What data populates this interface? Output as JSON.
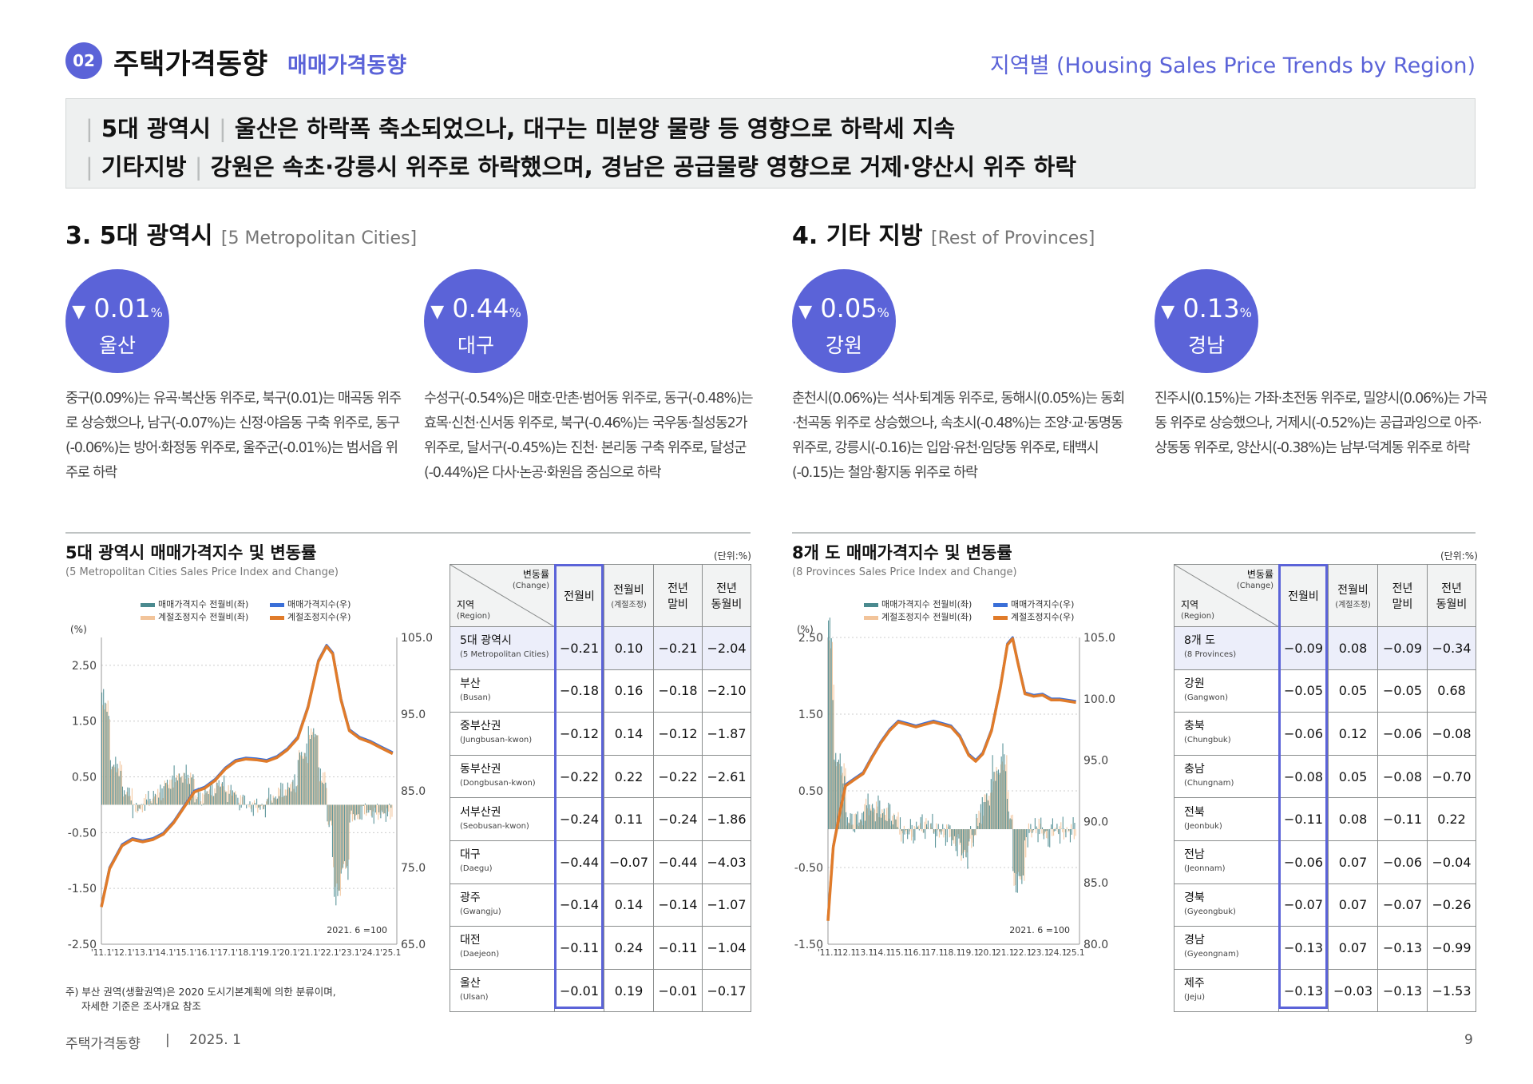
{
  "header": {
    "number": "02",
    "title": "주택가격동향",
    "subtitle": "매매가격동향",
    "region_title": "지역별 (Housing Sales Price Trends by Region)"
  },
  "summary": [
    {
      "label": "5대 광역시",
      "text": "울산은 하락폭 축소되었으나, 대구는 미분양 물량 등 영향으로 하락세 지속"
    },
    {
      "label": "기타지방",
      "text": "강원은 속초·강릉시 위주로 하락했으며, 경남은 공급물량 영향으로 거제·양산시 위주 하락"
    }
  ],
  "sections": [
    {
      "title": "3. 5대 광역시",
      "en": "[5 Metropolitan Cities]"
    },
    {
      "title": "4. 기타 지방",
      "en": "[Rest of Provinces]"
    }
  ],
  "highlights": [
    {
      "arrow": "▼",
      "value": "0.01",
      "unit": "%",
      "name": "울산",
      "desc": "중구(0.09%)는 유곡·복산동 위주로, 북구(0.01)는 매곡동 위주로 상승했으나, 남구(-0.07%)는 신정·야음동 구축 위주로, 동구(-0.06%)는 방어·화정동 위주로, 울주군(-0.01%)는 범서읍 위주로 하락"
    },
    {
      "arrow": "▼",
      "value": "0.44",
      "unit": "%",
      "name": "대구",
      "desc": "수성구(-0.54%)은 매호·만촌·범어동 위주로, 동구(-0.48%)는 효목·신천·신서동 위주로, 북구(-0.46%)는 국우동·칠성동2가 위주로, 달서구(-0.45%)는 진천· 본리동 구축 위주로, 달성군(-0.44%)은 다사·논공·화원읍 중심으로 하락"
    },
    {
      "arrow": "▼",
      "value": "0.05",
      "unit": "%",
      "name": "강원",
      "desc": "춘천시(0.06%)는 석사·퇴계동 위주로, 동해시(0.05%)는 동회·천곡동 위주로 상승했으나, 속초시(-0.48%)는 조양·교·동명동 위주로, 강릉시(-0.16)는 입암·유천·임당동 위주로, 태백시(-0.15)는 철암·황지동 위주로 하락"
    },
    {
      "arrow": "▼",
      "value": "0.13",
      "unit": "%",
      "name": "경남",
      "desc": "진주시(0.15%)는 가좌·초전동 위주로, 밀양시(0.06%)는 가곡동 위주로 상승했으나, 거제시(-0.52%)는 공급과잉으로 아주·상동동 위주로, 양산시(-0.38%)는 남부·덕계동 위주로 하락"
    }
  ],
  "charts": [
    {
      "title": "5대 광역시 매매가격지수 및 변동률",
      "subtitle": "(5 Metropolitan Cities Sales Price Index and Change)",
      "unit": "(단위:%)"
    },
    {
      "title": "8개 도 매매가격지수 및 변동률",
      "subtitle": "(8 Provinces Sales Price Index and Change)",
      "unit": "(단위:%)"
    }
  ],
  "chart_data": [
    {
      "type": "bar+line",
      "y_left_label": "(%)",
      "y_left_ticks": [
        "2.50",
        "1.50",
        "0.50",
        "-0.50",
        "-1.50",
        "-2.50"
      ],
      "y_right_ticks": [
        "105.0",
        "95.0",
        "85.0",
        "75.0",
        "65.0"
      ],
      "ylim_left": [
        -2.5,
        3.0
      ],
      "ylim_right": [
        65,
        105
      ],
      "x_ticks": [
        "'11.1",
        "'12.1",
        "'13.1",
        "'14.1",
        "'15.1",
        "'16.1",
        "'17.1",
        "'18.1",
        "'19.1",
        "'20.1",
        "'21.1",
        "'22.1",
        "'23.1",
        "'24.1",
        "'25.1"
      ],
      "base_note": "2021. 6 =100",
      "legend": [
        "매매가격지수 전월비(좌)",
        "매매가격지수(우)",
        "계절조정지수 전월비(좌)",
        "계절조정지수(우)"
      ],
      "index_series": [
        [
          2011,
          70
        ],
        [
          2011.4,
          75
        ],
        [
          2012,
          78
        ],
        [
          2012.5,
          78.8
        ],
        [
          2013,
          78.5
        ],
        [
          2013.5,
          78.8
        ],
        [
          2014,
          79.5
        ],
        [
          2014.5,
          81
        ],
        [
          2015,
          83
        ],
        [
          2015.5,
          85
        ],
        [
          2016,
          85.5
        ],
        [
          2016.5,
          86.5
        ],
        [
          2017,
          88
        ],
        [
          2017.5,
          89
        ],
        [
          2018,
          89.3
        ],
        [
          2018.5,
          89.2
        ],
        [
          2019,
          89
        ],
        [
          2019.5,
          89.5
        ],
        [
          2020,
          90.5
        ],
        [
          2020.5,
          92
        ],
        [
          2021,
          96
        ],
        [
          2021.5,
          102
        ],
        [
          2021.9,
          104
        ],
        [
          2022.2,
          103
        ],
        [
          2022.6,
          97
        ],
        [
          2023,
          93
        ],
        [
          2023.5,
          92
        ],
        [
          2024,
          91.5
        ],
        [
          2024.5,
          90.8
        ],
        [
          2025.1,
          90
        ]
      ]
    },
    {
      "type": "bar+line",
      "y_left_label": "(%)",
      "y_left_ticks": [
        "2.50",
        "1.50",
        "0.50",
        "-0.50",
        "-1.50"
      ],
      "y_right_ticks": [
        "105.0",
        "100.0",
        "95.0",
        "90.0",
        "85.0",
        "80.0"
      ],
      "ylim_left": [
        -1.5,
        2.5
      ],
      "ylim_right": [
        80,
        105
      ],
      "x_ticks": [
        "'11.1",
        "'12.1",
        "'13.1",
        "'14.1",
        "'15.1",
        "'16.1",
        "'17.1",
        "'18.1",
        "'19.1",
        "'20.1",
        "'21.1",
        "'22.1",
        "'23.1",
        "'24.1",
        "'25.1"
      ],
      "base_note": "2021. 6 =100",
      "legend": [
        "매매가격지수 전월비(좌)",
        "매매가격지수(우)",
        "계절조정지수 전월비(좌)",
        "계절조정지수(우)"
      ],
      "index_series": [
        [
          2011,
          82
        ],
        [
          2011.3,
          88
        ],
        [
          2011.7,
          91
        ],
        [
          2012,
          93
        ],
        [
          2012.5,
          93.5
        ],
        [
          2013,
          94
        ],
        [
          2013.5,
          95.3
        ],
        [
          2014,
          96.5
        ],
        [
          2014.5,
          97.5
        ],
        [
          2015,
          98.2
        ],
        [
          2015.5,
          98
        ],
        [
          2016,
          97.8
        ],
        [
          2016.5,
          98
        ],
        [
          2017,
          98.2
        ],
        [
          2017.5,
          98
        ],
        [
          2018,
          97.8
        ],
        [
          2018.5,
          97
        ],
        [
          2019,
          95.5
        ],
        [
          2019.4,
          95
        ],
        [
          2019.8,
          95.6
        ],
        [
          2020.3,
          97.5
        ],
        [
          2020.8,
          101
        ],
        [
          2021.2,
          104.5
        ],
        [
          2021.5,
          105
        ],
        [
          2021.8,
          103
        ],
        [
          2022.2,
          100.5
        ],
        [
          2022.7,
          100.3
        ],
        [
          2023.2,
          100.4
        ],
        [
          2023.7,
          100
        ],
        [
          2024.2,
          100
        ],
        [
          2025.1,
          99.8
        ]
      ]
    }
  ],
  "tables": [
    {
      "corner_top": "변동률",
      "corner_top_en": "(Change)",
      "corner_bottom": "지역",
      "corner_bottom_en": "(Region)",
      "headers": [
        {
          "l1": "전월비",
          "l2": ""
        },
        {
          "l1": "전월비",
          "l2": "(계절조정)"
        },
        {
          "l1": "전년",
          "l2": "말비"
        },
        {
          "l1": "전년",
          "l2": "동월비"
        }
      ],
      "rows": [
        {
          "ko": "5대 광역시",
          "en": "(5 Metropolitan Cities)",
          "v": [
            "−0.21",
            "0.10",
            "−0.21",
            "−2.04"
          ]
        },
        {
          "ko": "부산",
          "en": "(Busan)",
          "v": [
            "−0.18",
            "0.16",
            "−0.18",
            "−2.10"
          ]
        },
        {
          "ko": "중부산권",
          "en": "(Jungbusan-kwon)",
          "v": [
            "−0.12",
            "0.14",
            "−0.12",
            "−1.87"
          ]
        },
        {
          "ko": "동부산권",
          "en": "(Dongbusan-kwon)",
          "v": [
            "−0.22",
            "0.22",
            "−0.22",
            "−2.61"
          ]
        },
        {
          "ko": "서부산권",
          "en": "(Seobusan-kwon)",
          "v": [
            "−0.24",
            "0.11",
            "−0.24",
            "−1.86"
          ]
        },
        {
          "ko": "대구",
          "en": "(Daegu)",
          "v": [
            "−0.44",
            "−0.07",
            "−0.44",
            "−4.03"
          ]
        },
        {
          "ko": "광주",
          "en": "(Gwangju)",
          "v": [
            "−0.14",
            "0.14",
            "−0.14",
            "−1.07"
          ]
        },
        {
          "ko": "대전",
          "en": "(Daejeon)",
          "v": [
            "−0.11",
            "0.24",
            "−0.11",
            "−1.04"
          ]
        },
        {
          "ko": "울산",
          "en": "(Ulsan)",
          "v": [
            "−0.01",
            "0.19",
            "−0.01",
            "−0.17"
          ]
        }
      ]
    },
    {
      "corner_top": "변동률",
      "corner_top_en": "(Change)",
      "corner_bottom": "지역",
      "corner_bottom_en": "(Region)",
      "headers": [
        {
          "l1": "전월비",
          "l2": ""
        },
        {
          "l1": "전월비",
          "l2": "(계절조정)"
        },
        {
          "l1": "전년",
          "l2": "말비"
        },
        {
          "l1": "전년",
          "l2": "동월비"
        }
      ],
      "rows": [
        {
          "ko": "8개 도",
          "en": "(8 Provinces)",
          "v": [
            "−0.09",
            "0.08",
            "−0.09",
            "−0.34"
          ]
        },
        {
          "ko": "강원",
          "en": "(Gangwon)",
          "v": [
            "−0.05",
            "0.05",
            "−0.05",
            "0.68"
          ]
        },
        {
          "ko": "충북",
          "en": "(Chungbuk)",
          "v": [
            "−0.06",
            "0.12",
            "−0.06",
            "−0.08"
          ]
        },
        {
          "ko": "충남",
          "en": "(Chungnam)",
          "v": [
            "−0.08",
            "0.05",
            "−0.08",
            "−0.70"
          ]
        },
        {
          "ko": "전북",
          "en": "(Jeonbuk)",
          "v": [
            "−0.11",
            "0.08",
            "−0.11",
            "0.22"
          ]
        },
        {
          "ko": "전남",
          "en": "(Jeonnam)",
          "v": [
            "−0.06",
            "0.07",
            "−0.06",
            "−0.04"
          ]
        },
        {
          "ko": "경북",
          "en": "(Gyeongbuk)",
          "v": [
            "−0.07",
            "0.07",
            "−0.07",
            "−0.26"
          ]
        },
        {
          "ko": "경남",
          "en": "(Gyeongnam)",
          "v": [
            "−0.13",
            "0.07",
            "−0.13",
            "−0.99"
          ]
        },
        {
          "ko": "제주",
          "en": "(Jeju)",
          "v": [
            "−0.13",
            "−0.03",
            "−0.13",
            "−1.53"
          ]
        }
      ]
    }
  ],
  "note": {
    "line1": "주) 부산 권역(생활권역)은 2020 도시기본계획에 의한 분류이며,",
    "line2": "자세한 기준은 조사개요 참조"
  },
  "footer": {
    "left": "주택가격동향",
    "sep": "|",
    "date": "2025. 1",
    "page": "9"
  },
  "colors": {
    "accent": "#5b63d8",
    "index_line": "#3a6fd8",
    "sa_line": "#e07b2a",
    "bar1": "#4a8a8f",
    "bar2": "#f2c49a"
  }
}
